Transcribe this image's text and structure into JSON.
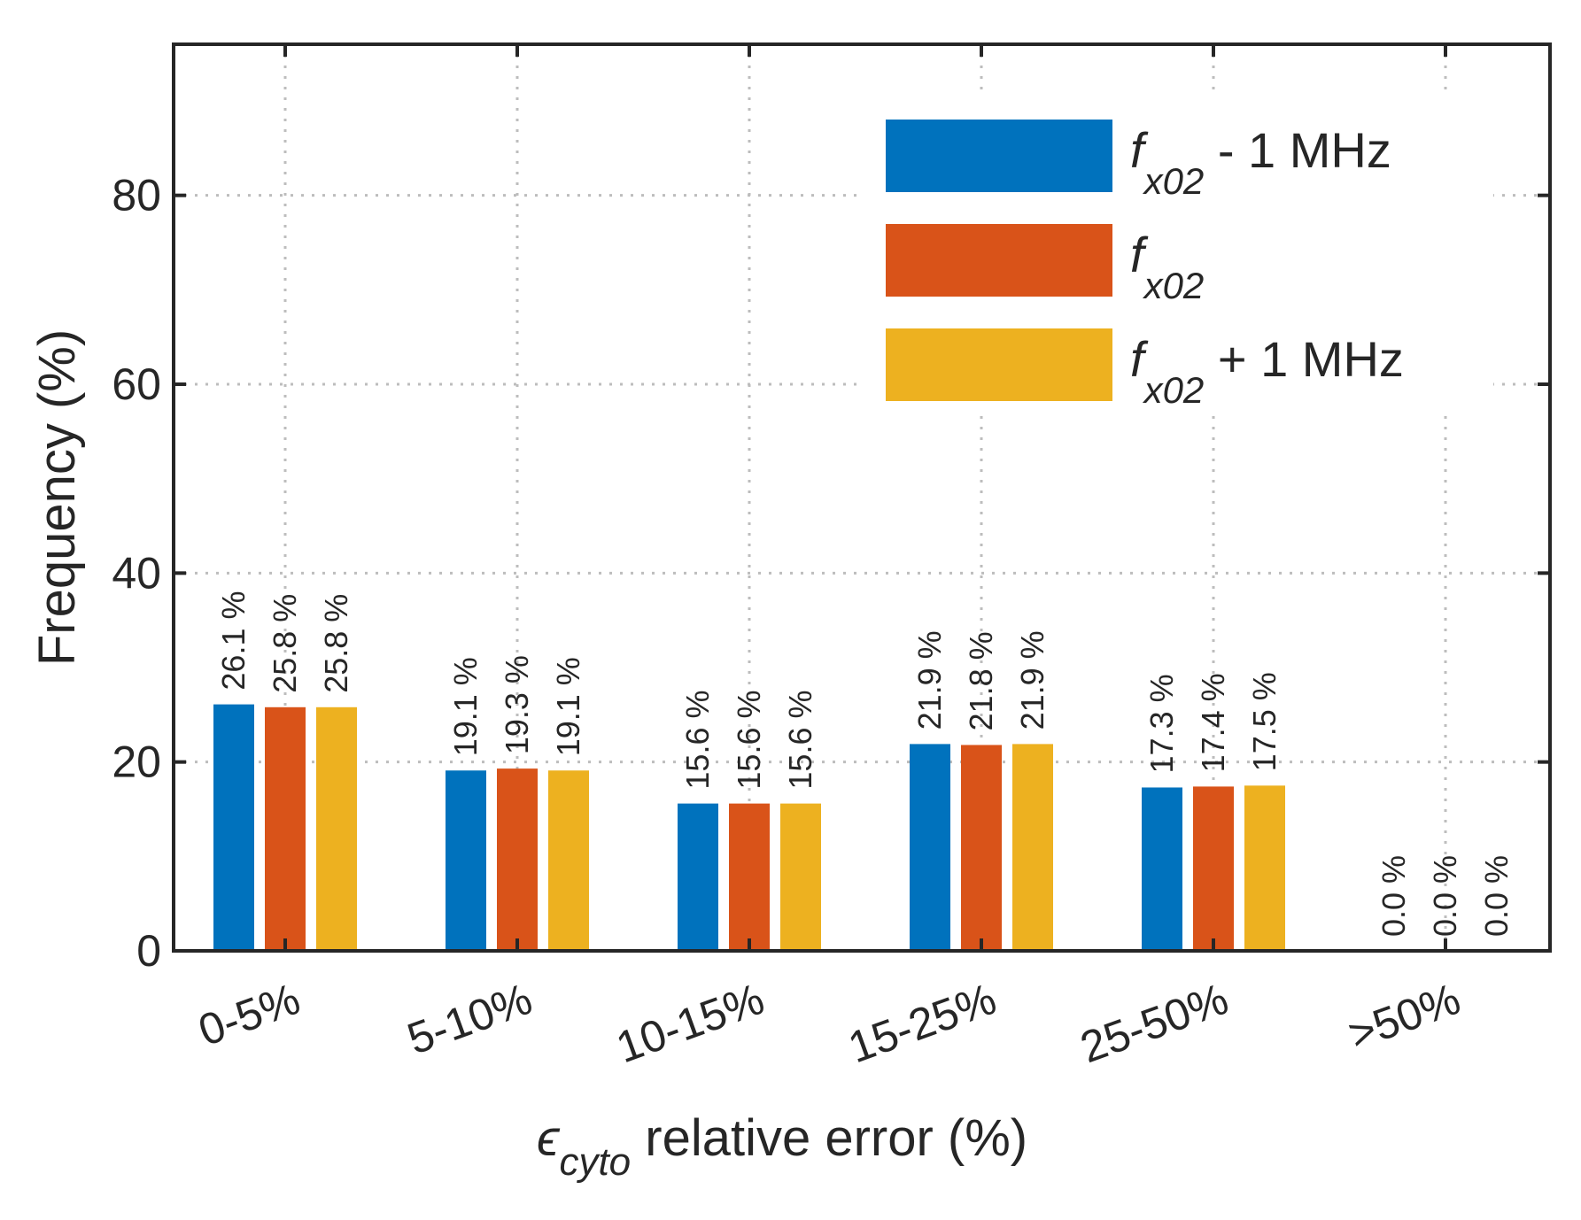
{
  "chart_data": {
    "type": "bar",
    "categories": [
      "0-5%",
      "5-10%",
      "10-15%",
      "15-25%",
      "25-50%",
      ">50%"
    ],
    "series": [
      {
        "name": "f_x02 - 1 MHz",
        "legend_main": "f",
        "legend_sub": "x02",
        "legend_suffix": " - 1 MHz",
        "color": "#0072BD",
        "values": [
          26.1,
          19.1,
          15.6,
          21.9,
          17.3,
          0.0
        ],
        "labels": [
          "26.1 %",
          "19.1 %",
          "15.6 %",
          "21.9 %",
          "17.3 %",
          "0.0 %"
        ]
      },
      {
        "name": "f_x02",
        "legend_main": "f",
        "legend_sub": "x02",
        "legend_suffix": "",
        "color": "#D95319",
        "values": [
          25.8,
          19.3,
          15.6,
          21.8,
          17.4,
          0.0
        ],
        "labels": [
          "25.8 %",
          "19.3 %",
          "15.6 %",
          "21.8 %",
          "17.4 %",
          "0.0 %"
        ]
      },
      {
        "name": "f_x02 + 1 MHz",
        "legend_main": "f",
        "legend_sub": "x02",
        "legend_suffix": " + 1 MHz",
        "color": "#EDB120",
        "values": [
          25.8,
          19.1,
          15.6,
          21.9,
          17.5,
          0.0
        ],
        "labels": [
          "25.8 %",
          "19.1 %",
          "15.6 %",
          "21.9 %",
          "17.5 %",
          "0.0 %"
        ]
      }
    ],
    "yticks": [
      "0",
      "20",
      "40",
      "60",
      "80"
    ],
    "ylim": [
      0,
      96
    ],
    "ylabel": "Frequency (%)",
    "xlabel_symbol": "ϵ",
    "xlabel_sub": "cyto",
    "xlabel_rest": " relative error (%)",
    "grid": true,
    "legend_position": "top-right"
  }
}
